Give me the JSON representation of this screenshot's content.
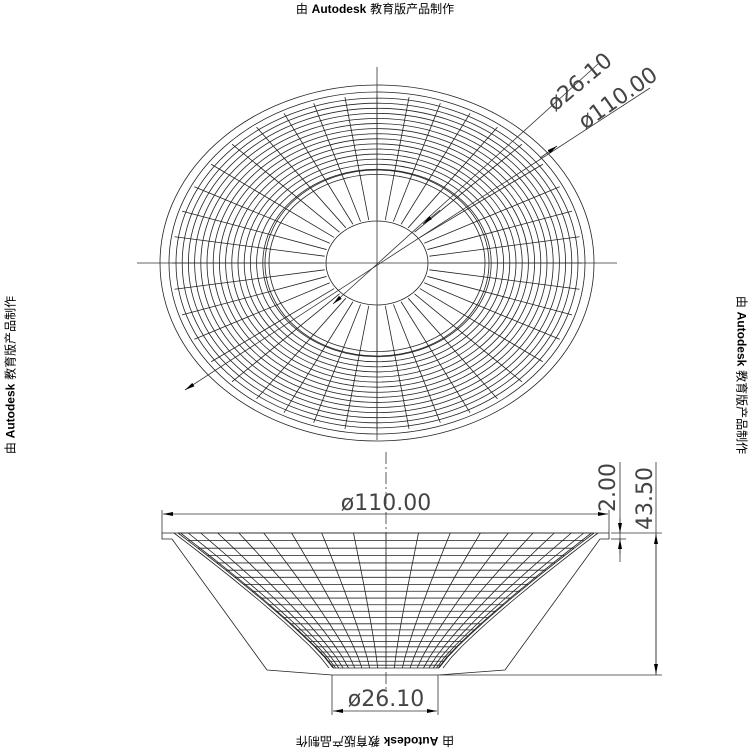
{
  "watermark": {
    "prefix": "由 ",
    "brand": "Autodesk",
    "suffix": " 教育版产品制作"
  },
  "top_view": {
    "dim_inner": "ø26.10",
    "dim_outer": "ø110.00"
  },
  "side_view": {
    "dim_top_diameter": "ø110.00",
    "dim_bottom_diameter": "ø26.10",
    "dim_rim_height": "2.00",
    "dim_total_height": "43.50"
  },
  "colors": {
    "line": "#000000",
    "text": "#444444",
    "background": "#ffffff"
  }
}
